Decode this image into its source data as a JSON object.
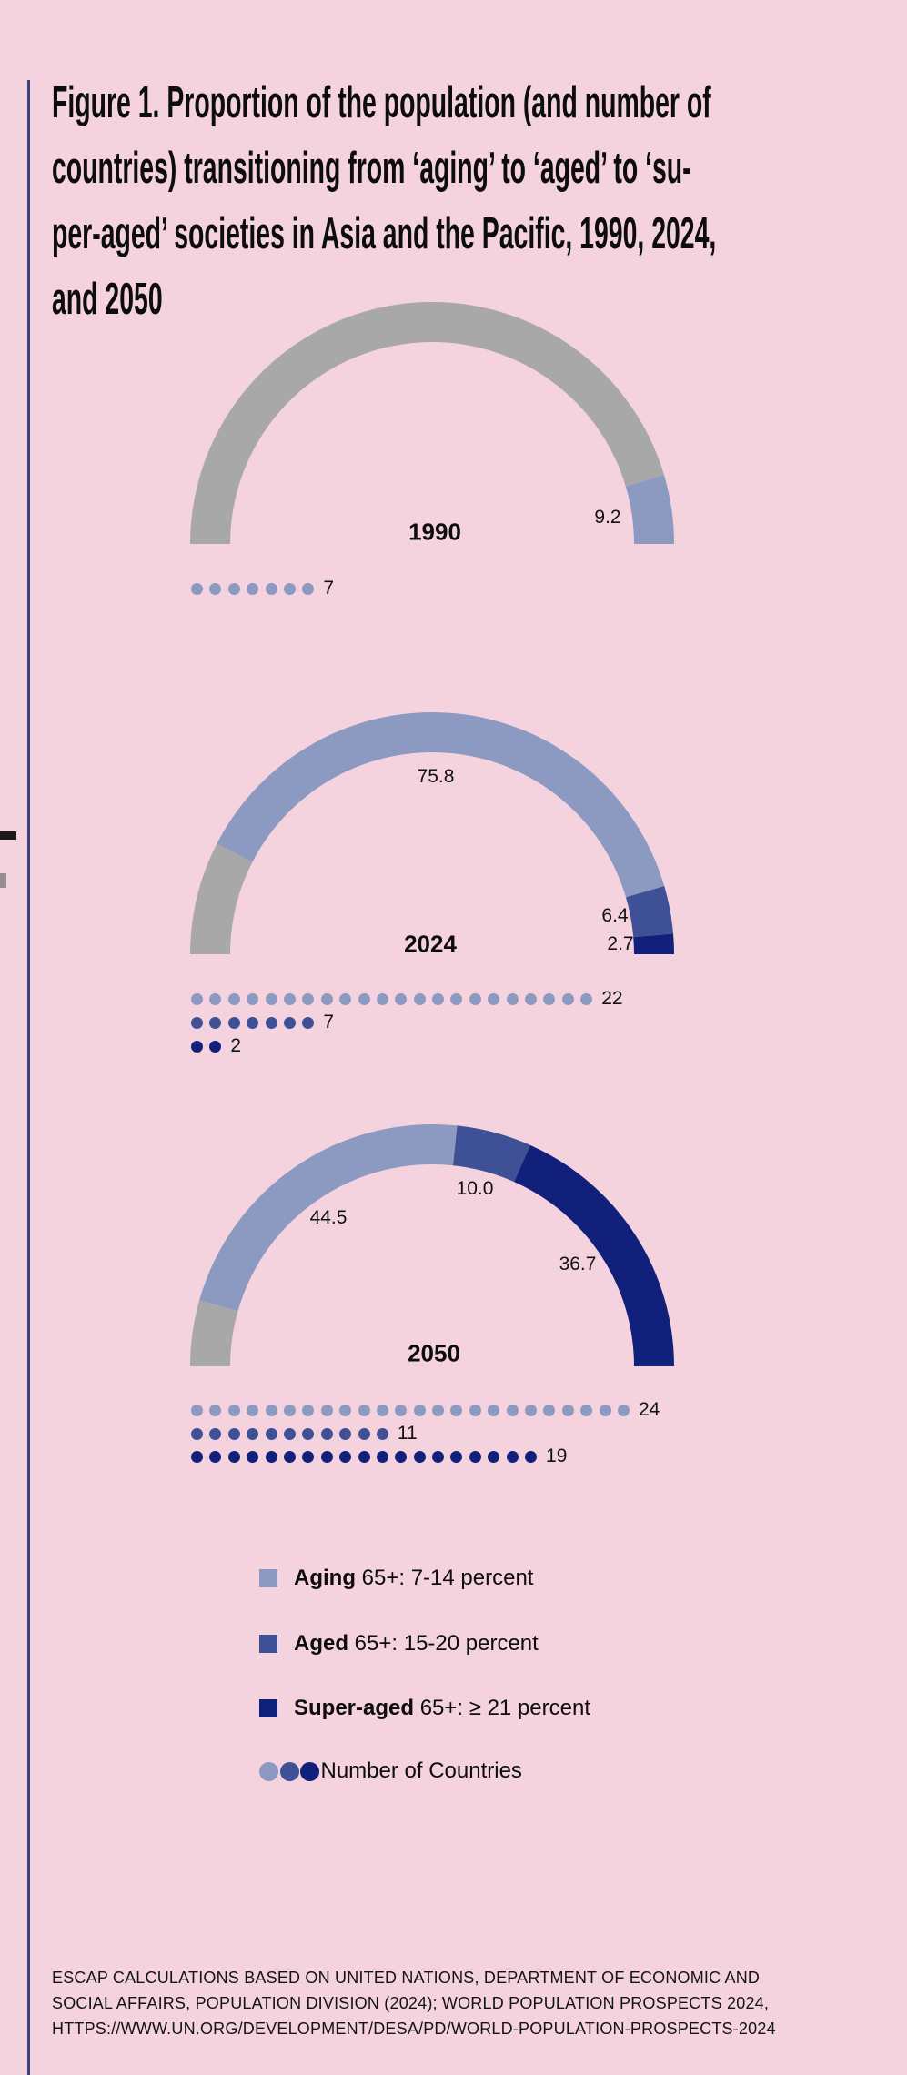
{
  "colors": {
    "background": "#F4D3DF",
    "accent_line": "#39427E",
    "text": "#0D0D0D",
    "gray": "#A8A8A8",
    "aging": "#8C99C1",
    "aged": "#3E5196",
    "super_aged": "#11207B"
  },
  "title": {
    "lines": [
      "Figure 1. Proportion of the population (and number of",
      "countries) transitioning from ‘aging’ to ‘aged’ to ‘su-",
      "per-aged’ societies in Asia and the Pacific, 1990, 2024,",
      "and 2050"
    ]
  },
  "chart_data": [
    {
      "type": "pie",
      "variant": "semicircle-donut-gauge",
      "title": "1990",
      "unit": "percent of population",
      "segments": [
        {
          "name": "remainder",
          "value": 90.8,
          "label": "",
          "color_key": "gray"
        },
        {
          "name": "aging",
          "value": 9.2,
          "label": "9.2",
          "color_key": "aging"
        }
      ],
      "country_dots": [
        {
          "name": "aging",
          "count": 7,
          "label": "7",
          "color_key": "aging"
        }
      ]
    },
    {
      "type": "pie",
      "variant": "semicircle-donut-gauge",
      "title": "2024",
      "unit": "percent of population",
      "segments": [
        {
          "name": "remainder",
          "value": 15.1,
          "label": "",
          "color_key": "gray"
        },
        {
          "name": "aging",
          "value": 75.8,
          "label": "75.8",
          "color_key": "aging"
        },
        {
          "name": "aged",
          "value": 6.4,
          "label": "6.4",
          "color_key": "aged"
        },
        {
          "name": "super-aged",
          "value": 2.7,
          "label": "2.7",
          "color_key": "super_aged"
        }
      ],
      "country_dots": [
        {
          "name": "aging",
          "count": 22,
          "label": "22",
          "color_key": "aging"
        },
        {
          "name": "aged",
          "count": 7,
          "label": "7",
          "color_key": "aged"
        },
        {
          "name": "super-aged",
          "count": 2,
          "label": "2",
          "color_key": "super_aged"
        }
      ]
    },
    {
      "type": "pie",
      "variant": "semicircle-donut-gauge",
      "title": "2050",
      "unit": "percent of population",
      "segments": [
        {
          "name": "remainder",
          "value": 8.8,
          "label": "",
          "color_key": "gray"
        },
        {
          "name": "aging",
          "value": 44.5,
          "label": "44.5",
          "color_key": "aging"
        },
        {
          "name": "aged",
          "value": 10.0,
          "label": "10.0",
          "color_key": "aged"
        },
        {
          "name": "super-aged",
          "value": 36.7,
          "label": "36.7",
          "color_key": "super_aged"
        }
      ],
      "country_dots": [
        {
          "name": "aging",
          "count": 24,
          "label": "24",
          "color_key": "aging"
        },
        {
          "name": "aged",
          "count": 11,
          "label": "11",
          "color_key": "aged"
        },
        {
          "name": "super-aged",
          "count": 19,
          "label": "19",
          "color_key": "super_aged"
        }
      ]
    }
  ],
  "legend": {
    "items": [
      {
        "term": "Aging",
        "rest": " 65+: 7-14 percent",
        "color_key": "aging"
      },
      {
        "term": "Aged",
        "rest": " 65+: 15-20 percent",
        "color_key": "aged"
      },
      {
        "term": "Super-aged",
        "rest": " 65+: ≥ 21 percent",
        "color_key": "super_aged"
      }
    ],
    "countries_label": "Number of Countries",
    "countries_dot_color_keys": [
      "aging",
      "aged",
      "super_aged"
    ]
  },
  "source": {
    "lines": [
      "ESCAP CALCULATIONS BASED ON UNITED NATIONS, DEPARTMENT OF ECONOMIC AND",
      "SOCIAL AFFAIRS, POPULATION DIVISION (2024); WORLD POPULATION PROSPECTS 2024,",
      "HTTPS://WWW.UN.ORG/DEVELOPMENT/DESA/PD/WORLD-POPULATION-PROSPECTS-2024"
    ]
  }
}
